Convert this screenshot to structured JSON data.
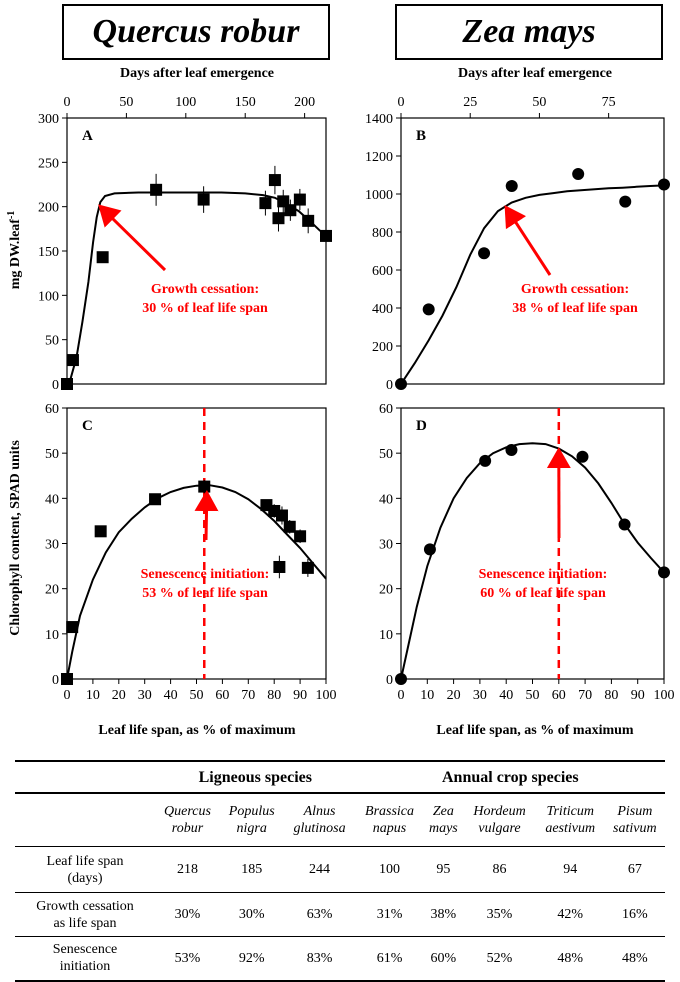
{
  "headers": {
    "left_species": "Quercus robur",
    "right_species": "Zea mays"
  },
  "axis_text": {
    "top_x_label": "Days after leaf emergence",
    "bottom_x_label": "Leaf life span, as % of maximum",
    "y_label_top": "mg DW.leaf",
    "y_label_top_sup": "-1",
    "y_label_bottom": "Chlorophyll content, SPAD units"
  },
  "colors": {
    "annotation": "#ff0000",
    "axis": "#000000",
    "marker": "#000000"
  },
  "chart_data": [
    {
      "id": "A",
      "type": "scatter",
      "marker": "square",
      "x_unit": "days",
      "xlim": [
        0,
        218
      ],
      "x_ticks": [
        0,
        50,
        100,
        150,
        200
      ],
      "ylim": [
        0,
        300
      ],
      "y_ticks": [
        0,
        50,
        100,
        150,
        200,
        250,
        300
      ],
      "points": [
        {
          "x": 0,
          "y": 0
        },
        {
          "x": 5,
          "y": 27
        },
        {
          "x": 30,
          "y": 143
        },
        {
          "x": 75,
          "y": 219,
          "err": 18
        },
        {
          "x": 115,
          "y": 208,
          "err": 15
        },
        {
          "x": 167,
          "y": 204,
          "err": 14
        },
        {
          "x": 175,
          "y": 230,
          "err": 16
        },
        {
          "x": 178,
          "y": 187,
          "err": 15
        },
        {
          "x": 182,
          "y": 206,
          "err": 13
        },
        {
          "x": 188,
          "y": 196,
          "err": 12
        },
        {
          "x": 196,
          "y": 208,
          "err": 12
        },
        {
          "x": 203,
          "y": 184,
          "err": 14
        },
        {
          "x": 218,
          "y": 167,
          "err": 4
        }
      ],
      "curve": [
        [
          0,
          0
        ],
        [
          3,
          6
        ],
        [
          8,
          30
        ],
        [
          13,
          70
        ],
        [
          18,
          115
        ],
        [
          22,
          160
        ],
        [
          25,
          188
        ],
        [
          28,
          205
        ],
        [
          32,
          212
        ],
        [
          40,
          215
        ],
        [
          60,
          216
        ],
        [
          80,
          216
        ],
        [
          100,
          216
        ],
        [
          115,
          216
        ],
        [
          130,
          216
        ],
        [
          150,
          215
        ],
        [
          165,
          213
        ],
        [
          175,
          210
        ],
        [
          185,
          203
        ],
        [
          195,
          195
        ],
        [
          205,
          183
        ],
        [
          212,
          174
        ],
        [
          218,
          167
        ]
      ],
      "annotation": {
        "line1": "Growth cessation:",
        "line2": "30 % of leaf life span",
        "target_x": 28,
        "target_y": 207
      }
    },
    {
      "id": "B",
      "type": "scatter",
      "marker": "circle",
      "x_unit": "days",
      "xlim": [
        0,
        95
      ],
      "x_ticks": [
        0,
        25,
        50,
        75
      ],
      "ylim": [
        0,
        1400
      ],
      "y_ticks": [
        0,
        200,
        400,
        600,
        800,
        1000,
        1200,
        1400
      ],
      "points": [
        {
          "x": 0,
          "y": 0
        },
        {
          "x": 10,
          "y": 393
        },
        {
          "x": 30,
          "y": 688
        },
        {
          "x": 40,
          "y": 1042
        },
        {
          "x": 64,
          "y": 1105
        },
        {
          "x": 81,
          "y": 960
        },
        {
          "x": 95,
          "y": 1050
        }
      ],
      "curve": [
        [
          0,
          0
        ],
        [
          5,
          110
        ],
        [
          10,
          230
        ],
        [
          15,
          360
        ],
        [
          20,
          510
        ],
        [
          25,
          680
        ],
        [
          30,
          820
        ],
        [
          35,
          910
        ],
        [
          40,
          955
        ],
        [
          45,
          980
        ],
        [
          50,
          995
        ],
        [
          55,
          1005
        ],
        [
          60,
          1015
        ],
        [
          65,
          1020
        ],
        [
          70,
          1025
        ],
        [
          75,
          1030
        ],
        [
          80,
          1033
        ],
        [
          85,
          1038
        ],
        [
          90,
          1042
        ],
        [
          95,
          1045
        ]
      ],
      "annotation": {
        "line1": "Growth cessation:",
        "line2": "38 % of leaf life span",
        "target_x": 38,
        "target_y": 960
      }
    },
    {
      "id": "C",
      "type": "scatter",
      "marker": "square",
      "x_unit": "%",
      "xlim": [
        0,
        100
      ],
      "x_ticks": [
        0,
        10,
        20,
        30,
        40,
        50,
        60,
        70,
        80,
        90,
        100
      ],
      "ylim": [
        0,
        60
      ],
      "y_ticks": [
        0,
        10,
        20,
        30,
        40,
        50,
        60
      ],
      "points": [
        {
          "x": 0,
          "y": 0
        },
        {
          "x": 2,
          "y": 11.5
        },
        {
          "x": 13,
          "y": 32.7
        },
        {
          "x": 34,
          "y": 39.8
        },
        {
          "x": 53,
          "y": 42.6,
          "err": 1.5
        },
        {
          "x": 77,
          "y": 38.5
        },
        {
          "x": 80,
          "y": 37.2,
          "err": 1.5
        },
        {
          "x": 82,
          "y": 24.8,
          "err": 2.5
        },
        {
          "x": 83,
          "y": 36.2,
          "err": 2
        },
        {
          "x": 86,
          "y": 33.7,
          "err": 1.5
        },
        {
          "x": 90,
          "y": 31.6,
          "err": 1.5
        },
        {
          "x": 93,
          "y": 24.6,
          "err": 2
        }
      ],
      "curve": [
        [
          0,
          0
        ],
        [
          2,
          6
        ],
        [
          5,
          14
        ],
        [
          10,
          22
        ],
        [
          15,
          28
        ],
        [
          20,
          32.5
        ],
        [
          25,
          35.5
        ],
        [
          30,
          38
        ],
        [
          35,
          40
        ],
        [
          40,
          41.4
        ],
        [
          45,
          42.3
        ],
        [
          50,
          42.8
        ],
        [
          55,
          42.9
        ],
        [
          60,
          42.4
        ],
        [
          65,
          41.4
        ],
        [
          70,
          39.8
        ],
        [
          75,
          37.6
        ],
        [
          80,
          35
        ],
        [
          85,
          32
        ],
        [
          90,
          29
        ],
        [
          95,
          25.6
        ],
        [
          100,
          22.2
        ]
      ],
      "vline_x": 53,
      "annotation": {
        "line1": "Senescence initiation:",
        "line2": "53 % of leaf life span",
        "target_x": 54,
        "target_y": 42.5
      }
    },
    {
      "id": "D",
      "type": "scatter",
      "marker": "circle",
      "x_unit": "%",
      "xlim": [
        0,
        100
      ],
      "x_ticks": [
        0,
        10,
        20,
        30,
        40,
        50,
        60,
        70,
        80,
        90,
        100
      ],
      "ylim": [
        0,
        60
      ],
      "y_ticks": [
        0,
        10,
        20,
        30,
        40,
        50,
        60
      ],
      "points": [
        {
          "x": 0,
          "y": 0
        },
        {
          "x": 11,
          "y": 28.7
        },
        {
          "x": 32,
          "y": 48.3
        },
        {
          "x": 42,
          "y": 50.7
        },
        {
          "x": 69,
          "y": 49.2
        },
        {
          "x": 85,
          "y": 34.2
        },
        {
          "x": 100,
          "y": 23.6
        }
      ],
      "curve": [
        [
          0,
          0
        ],
        [
          3,
          8
        ],
        [
          6,
          16
        ],
        [
          10,
          25
        ],
        [
          15,
          33.5
        ],
        [
          20,
          40
        ],
        [
          25,
          44.5
        ],
        [
          30,
          47.8
        ],
        [
          35,
          50
        ],
        [
          40,
          51.3
        ],
        [
          45,
          52
        ],
        [
          50,
          52.2
        ],
        [
          55,
          52
        ],
        [
          60,
          51
        ],
        [
          65,
          49.3
        ],
        [
          70,
          46.8
        ],
        [
          75,
          43.3
        ],
        [
          80,
          39
        ],
        [
          85,
          34.3
        ],
        [
          90,
          30.2
        ],
        [
          95,
          26.8
        ],
        [
          100,
          23.6
        ]
      ],
      "vline_x": 60,
      "annotation": {
        "line1": "Senescence initiation:",
        "line2": "60 % of leaf life span",
        "target_x": 60,
        "target_y": 52
      }
    }
  ],
  "table": {
    "group_ligneous": "Ligneous species",
    "group_annual": "Annual crop species",
    "species": [
      {
        "l1": "Quercus",
        "l2": "robur"
      },
      {
        "l1": "Populus",
        "l2": "nigra"
      },
      {
        "l1": "Alnus",
        "l2": "glutinosa"
      },
      {
        "l1": "Brassica",
        "l2": "napus"
      },
      {
        "l1": "Zea",
        "l2": "mays"
      },
      {
        "l1": "Hordeum",
        "l2": "vulgare"
      },
      {
        "l1": "Triticum",
        "l2": "aestivum"
      },
      {
        "l1": "Pisum",
        "l2": "sativum"
      }
    ],
    "rows": [
      {
        "label1": "Leaf life span",
        "label2": "(days)",
        "values": [
          "218",
          "185",
          "244",
          "100",
          "95",
          "86",
          "94",
          "67"
        ]
      },
      {
        "label1": "Growth cessation",
        "label2": "as life span",
        "values": [
          "30%",
          "30%",
          "63%",
          "31%",
          "38%",
          "35%",
          "42%",
          "16%"
        ]
      },
      {
        "label1": "Senescence",
        "label2": "initiation",
        "values": [
          "53%",
          "92%",
          "83%",
          "61%",
          "60%",
          "52%",
          "48%",
          "48%"
        ]
      }
    ]
  }
}
